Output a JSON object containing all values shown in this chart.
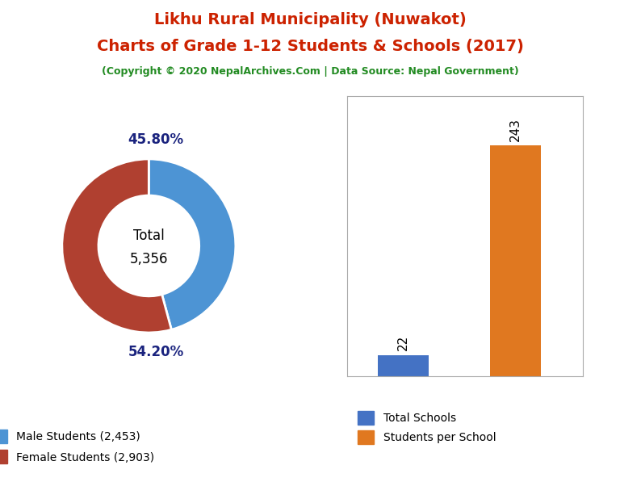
{
  "title_line1": "Likhu Rural Municipality (Nuwakot)",
  "title_line2": "Charts of Grade 1-12 Students & Schools (2017)",
  "subtitle": "(Copyright © 2020 NepalArchives.Com | Data Source: Nepal Government)",
  "title_color": "#cc2200",
  "subtitle_color": "#228B22",
  "male_pct": 45.8,
  "female_pct": 54.2,
  "male_count": 2453,
  "female_count": 2903,
  "total_students": "5,356",
  "male_color": "#4d94d4",
  "female_color": "#B04030",
  "pct_label_color": "#1a237e",
  "total_schools": 22,
  "students_per_school": 243,
  "bar_blue": "#4472C4",
  "bar_orange": "#E07820",
  "legend_label_pie_male": "Male Students (2,453)",
  "legend_label_pie_female": "Female Students (2,903)",
  "legend_label_bar_schools": "Total Schools",
  "legend_label_bar_students": "Students per School",
  "background_color": "#ffffff"
}
